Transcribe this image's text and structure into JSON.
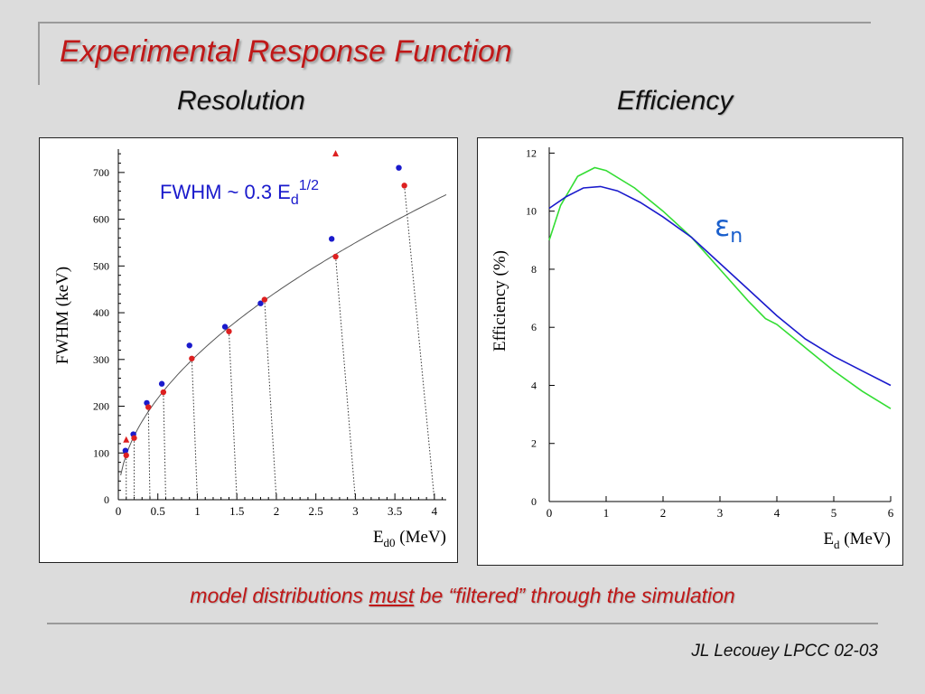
{
  "slide": {
    "title": "Experimental Response Function",
    "left_heading": "Resolution",
    "right_heading": "Efficiency",
    "footnote_a": "model distributions ",
    "footnote_b": "must",
    "footnote_c": " be “filtered” through the simulation",
    "credit": "JL Lecouey LPCC 02-03"
  },
  "chart_data": [
    {
      "type": "scatter",
      "ylabel": "FWHM (keV)",
      "xlabel_main": "E",
      "xlabel_sub": "d0",
      "xlabel_unit": " (MeV)",
      "annotation": "FWHM ~ 0.3 E",
      "annotation_sub": "d",
      "annotation_sup": "1/2",
      "xlim": [
        0,
        4.15
      ],
      "ylim": [
        0,
        750
      ],
      "xticks": [
        0,
        0.5,
        1,
        1.5,
        2,
        2.5,
        3,
        3.5,
        4
      ],
      "xtick_labels": [
        "0",
        "0.5",
        "1",
        "1.5",
        "2",
        "2.5",
        "3",
        "3.5",
        "4"
      ],
      "yticks": [
        0,
        100,
        200,
        300,
        400,
        500,
        600,
        700
      ],
      "ytick_labels": [
        "0",
        "100",
        "200",
        "300",
        "400",
        "500",
        "600",
        "700"
      ],
      "fit_curve": {
        "formula": "0.3*sqrt(E)",
        "color": "#555555"
      },
      "series": [
        {
          "color": "#1a1acc",
          "marker": "circle",
          "x": [
            0.09,
            0.19,
            0.36,
            0.55,
            0.9,
            1.35,
            1.8,
            2.7,
            3.55
          ],
          "y": [
            105,
            140,
            207,
            248,
            330,
            370,
            420,
            558,
            710
          ]
        },
        {
          "color": "#dd2020",
          "marker": "circle",
          "x": [
            0.1,
            0.2,
            0.38,
            0.57,
            0.93,
            1.4,
            1.85,
            2.75,
            3.62
          ],
          "y": [
            95,
            132,
            198,
            230,
            302,
            360,
            428,
            520,
            672
          ]
        },
        {
          "color": "#dd2020",
          "marker": "triangle",
          "x": [
            0.1,
            2.75
          ],
          "y": [
            128,
            740
          ]
        }
      ],
      "drop_lines": [
        {
          "from": [
            0.1,
            95
          ],
          "to": [
            0.1,
            0
          ]
        },
        {
          "from": [
            0.2,
            132
          ],
          "to": [
            0.2,
            0
          ]
        },
        {
          "from": [
            0.38,
            198
          ],
          "to": [
            0.4,
            0
          ]
        },
        {
          "from": [
            0.57,
            230
          ],
          "to": [
            0.6,
            0
          ]
        },
        {
          "from": [
            0.93,
            302
          ],
          "to": [
            1.0,
            0
          ]
        },
        {
          "from": [
            1.4,
            360
          ],
          "to": [
            1.5,
            0
          ]
        },
        {
          "from": [
            1.85,
            428
          ],
          "to": [
            2.0,
            0
          ]
        },
        {
          "from": [
            2.75,
            520
          ],
          "to": [
            3.0,
            0
          ]
        },
        {
          "from": [
            3.62,
            672
          ],
          "to": [
            4.0,
            0
          ]
        }
      ]
    },
    {
      "type": "line",
      "ylabel": "Efficiency (%)",
      "xlabel_main": "E",
      "xlabel_sub": "d",
      "xlabel_unit": " (MeV)",
      "annotation": "εn",
      "annotation_main": "ε",
      "annotation_sub": "n",
      "annotation_color": "#1a5fcc",
      "xlim": [
        0,
        6
      ],
      "ylim": [
        0,
        12.2
      ],
      "xticks": [
        0,
        1,
        2,
        3,
        4,
        5,
        6
      ],
      "xtick_labels": [
        "0",
        "1",
        "2",
        "3",
        "4",
        "5",
        "6"
      ],
      "yticks": [
        0,
        2,
        4,
        6,
        8,
        10,
        12
      ],
      "ytick_labels": [
        "0",
        "2",
        "4",
        "6",
        "8",
        "10",
        "12"
      ],
      "series": [
        {
          "color": "#33dd33",
          "x": [
            0,
            0.2,
            0.5,
            0.8,
            1.0,
            1.5,
            2.0,
            2.5,
            3.0,
            3.5,
            3.8,
            4.0,
            4.5,
            5.0,
            5.5,
            6.0
          ],
          "y": [
            9.0,
            10.2,
            11.2,
            11.5,
            11.4,
            10.8,
            10.0,
            9.1,
            8.0,
            6.9,
            6.3,
            6.1,
            5.3,
            4.5,
            3.8,
            3.2
          ]
        },
        {
          "color": "#1a1acc",
          "x": [
            0,
            0.3,
            0.6,
            0.9,
            1.2,
            1.6,
            2.0,
            2.5,
            3.0,
            3.5,
            4.0,
            4.5,
            5.0,
            5.5,
            6.0
          ],
          "y": [
            10.1,
            10.5,
            10.8,
            10.85,
            10.7,
            10.3,
            9.8,
            9.1,
            8.2,
            7.3,
            6.4,
            5.6,
            5.0,
            4.5,
            4.0
          ]
        }
      ]
    }
  ]
}
